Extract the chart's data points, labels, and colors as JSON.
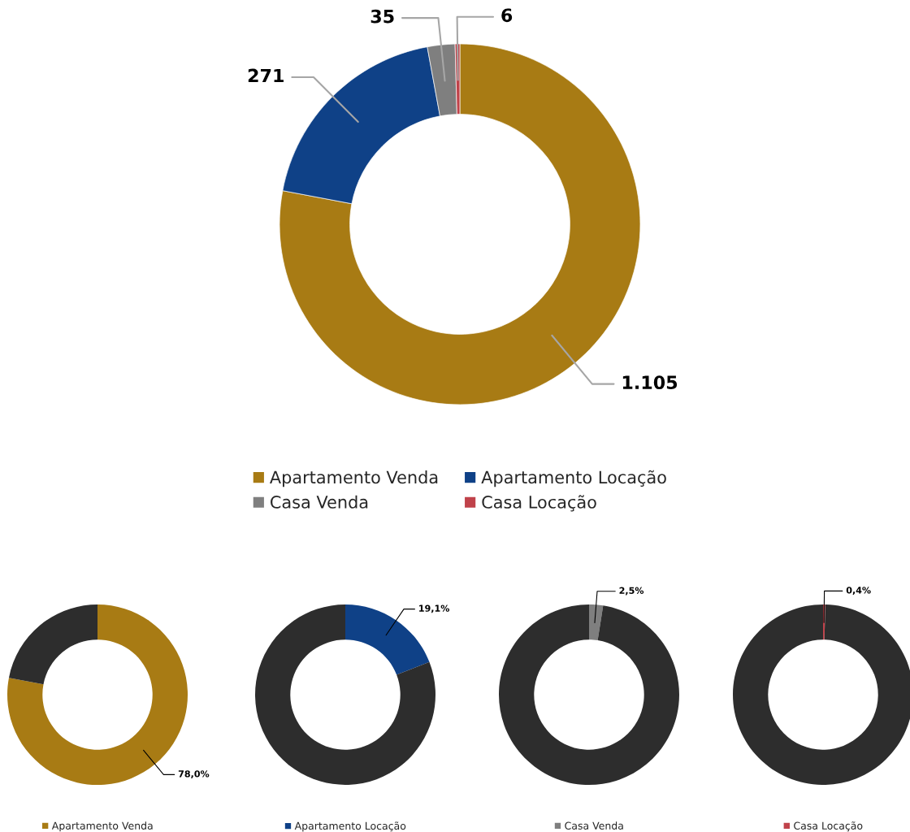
{
  "chart_data": [
    {
      "type": "donut",
      "categories": [
        "Apartamento Venda",
        "Apartamento Locação",
        "Casa Venda",
        "Casa Locação"
      ],
      "values": [
        1105,
        271,
        35,
        6
      ],
      "colors": [
        "#a87b14",
        "#0f4187",
        "#7f7f7f",
        "#c0424a"
      ],
      "value_labels": [
        "1.105",
        "271",
        "35",
        "6"
      ],
      "legend": "bottom"
    },
    {
      "type": "donut",
      "categories": [
        "Apartamento Venda",
        null
      ],
      "values": [
        78.0,
        22.0
      ],
      "colors": [
        "#a87b14",
        "#2d2d2d"
      ],
      "value_labels": [
        "78,0%",
        null
      ],
      "legend": "bottom"
    },
    {
      "type": "donut",
      "categories": [
        "Apartamento Locação",
        null
      ],
      "values": [
        19.1,
        80.9
      ],
      "colors": [
        "#0f4187",
        "#2d2d2d"
      ],
      "value_labels": [
        "19,1%",
        null
      ],
      "legend": "bottom"
    },
    {
      "type": "donut",
      "categories": [
        "Casa Venda",
        null
      ],
      "values": [
        2.5,
        97.5
      ],
      "colors": [
        "#7f7f7f",
        "#2d2d2d"
      ],
      "value_labels": [
        "2,5%",
        null
      ],
      "legend": "bottom"
    },
    {
      "type": "donut",
      "categories": [
        "Casa Locação",
        null
      ],
      "values": [
        0.4,
        99.6
      ],
      "colors": [
        "#c0424a",
        "#2d2d2d"
      ],
      "value_labels": [
        "0,4%",
        null
      ],
      "legend": "bottom"
    }
  ]
}
